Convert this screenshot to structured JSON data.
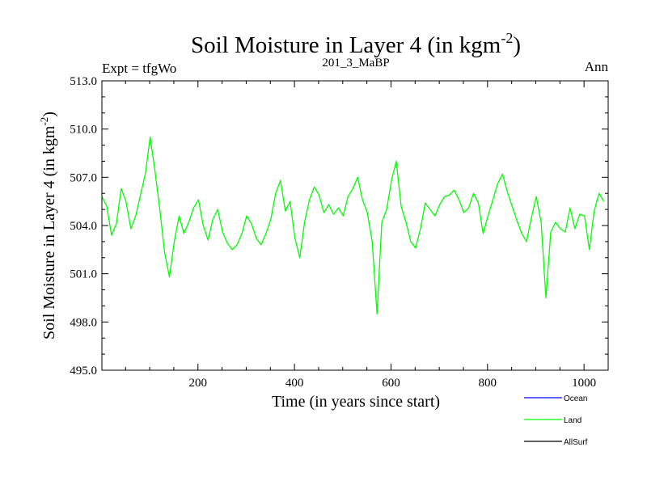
{
  "chart_data": {
    "type": "line",
    "title": "Soil Moisture in Layer 4 (in kgm",
    "title_sup": "-2",
    "title_end": ")",
    "left_label": "Expt = tfgWo",
    "center_label": "201_3_MaBP",
    "right_label": "Ann",
    "xlabel": "Time (in years since start)",
    "ylabel": "Soil Moisture in Layer 4 (in kgm",
    "ylabel_sup": "-2",
    "ylabel_end": ")",
    "xlim": [
      1,
      1050
    ],
    "ylim": [
      495.0,
      513.0
    ],
    "xticks": [
      200,
      400,
      600,
      800,
      1000
    ],
    "xtick_labels": [
      "200",
      "400",
      "600",
      "800",
      "1000"
    ],
    "yticks": [
      495.0,
      498.0,
      501.0,
      504.0,
      507.0,
      510.0,
      513.0
    ],
    "ytick_labels": [
      "495.0",
      "498.0",
      "501.0",
      "504.0",
      "507.0",
      "510.0",
      "513.0"
    ],
    "legend": [
      {
        "name": "Ocean",
        "color": "#0000ff"
      },
      {
        "name": "Land",
        "color": "#00ff00"
      },
      {
        "name": "AllSurf",
        "color": "#000000"
      }
    ],
    "series": [
      {
        "name": "Land",
        "color": "#00ff00",
        "x_start": 1,
        "x_step": 10,
        "values": [
          505.8,
          505.2,
          503.4,
          504.1,
          506.3,
          505.5,
          503.8,
          504.6,
          505.9,
          507.2,
          509.5,
          507.4,
          505.0,
          502.3,
          500.8,
          503.0,
          504.6,
          503.5,
          504.2,
          505.1,
          505.6,
          504.0,
          503.1,
          504.4,
          505.0,
          503.6,
          502.9,
          502.5,
          502.8,
          503.5,
          504.6,
          504.1,
          503.2,
          502.8,
          503.5,
          504.4,
          506.0,
          506.8,
          504.9,
          505.5,
          503.2,
          502.0,
          504.2,
          505.6,
          506.4,
          505.9,
          504.8,
          505.3,
          504.7,
          505.1,
          504.6,
          505.8,
          506.3,
          507.0,
          505.6,
          504.8,
          503.0,
          498.5,
          504.2,
          505.0,
          506.8,
          508.0,
          505.2,
          504.2,
          503.0,
          502.6,
          503.8,
          505.4,
          505.0,
          504.6,
          505.3,
          505.8,
          505.9,
          506.2,
          505.6,
          504.8,
          505.1,
          506.0,
          505.4,
          503.5,
          504.6,
          505.6,
          506.6,
          507.2,
          506.1,
          505.2,
          504.3,
          503.5,
          503.0,
          504.5,
          505.8,
          504.2,
          499.5,
          503.6,
          504.2,
          503.8,
          503.6,
          505.1,
          503.8,
          504.7,
          504.6,
          502.5,
          504.9,
          506.0,
          505.5
        ]
      }
    ]
  }
}
